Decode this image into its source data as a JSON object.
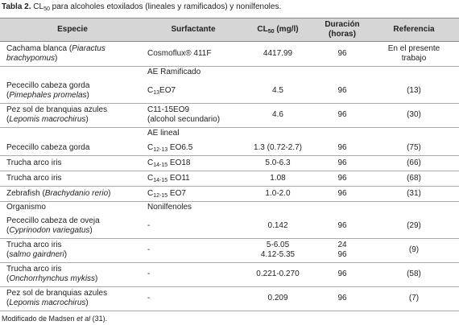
{
  "title": [
    {
      "b": "Tabla 2."
    },
    " CL",
    {
      "sub": "50"
    },
    " para alcoholes etoxilados (lineales y ramificados) y nonilfenoles."
  ],
  "table": {
    "header": [
      [
        [
          "Especie"
        ]
      ],
      [
        [
          "Surfactante"
        ]
      ],
      [
        [
          "CL",
          {
            "sub": "50"
          },
          " (mg/l)"
        ]
      ],
      [
        [
          "Duración"
        ],
        [
          "(horas)"
        ]
      ],
      [
        [
          "Referencia"
        ]
      ]
    ],
    "rows": [
      [
        [
          [
            "Cachama blanca (",
            {
              "i": "Piaractus"
            }
          ],
          [
            {
              "i": "brachypomus"
            },
            ")"
          ]
        ],
        [
          [
            "Cosmoflux® 411F"
          ]
        ],
        [
          [
            "4417.99"
          ]
        ],
        [
          [
            "96"
          ]
        ],
        [
          [
            "En el presente"
          ],
          [
            "trabajo"
          ]
        ]
      ],
      [
        [],
        [
          [
            "AE Ramificado"
          ]
        ],
        [],
        [],
        []
      ],
      [
        [
          [
            "Pececillo cabeza gorda"
          ],
          [
            "(",
            {
              "i": "Pimephales promelas"
            },
            ")"
          ]
        ],
        [
          [
            "C",
            {
              "sub": "13"
            },
            "EO7"
          ]
        ],
        [
          [
            "4.5"
          ]
        ],
        [
          [
            "96"
          ]
        ],
        [
          [
            "(13)"
          ]
        ]
      ],
      [
        [
          [
            "Pez sol de branquias azules"
          ],
          [
            "(",
            {
              "i": "Lepomis macrochirus"
            },
            ")"
          ]
        ],
        [
          [
            "C11-15EO9"
          ],
          [
            "(alcohol secundario)"
          ]
        ],
        [
          [
            "4.6"
          ]
        ],
        [
          [
            "96"
          ]
        ],
        [
          [
            "(30)"
          ]
        ]
      ],
      [
        [],
        [
          [
            "AE lineal"
          ]
        ],
        [],
        [],
        []
      ],
      [
        [
          [
            "Pececillo cabeza gorda"
          ]
        ],
        [
          [
            "C",
            {
              "sub": "12-13"
            },
            " EO6.5"
          ]
        ],
        [
          [
            "1.3 (0.72-2.7)"
          ]
        ],
        [
          [
            "96"
          ]
        ],
        [
          [
            "(75)"
          ]
        ]
      ],
      [
        [
          [
            "Trucha arco iris"
          ]
        ],
        [
          [
            "C",
            {
              "sub": "14-15"
            },
            " EO18"
          ]
        ],
        [
          [
            "5.0-6.3"
          ]
        ],
        [
          [
            "96"
          ]
        ],
        [
          [
            "(66)"
          ]
        ]
      ],
      [
        [
          [
            "Trucha arco iris"
          ]
        ],
        [
          [
            "C",
            {
              "sub": "14-15"
            },
            " EO11"
          ]
        ],
        [
          [
            "1.08"
          ]
        ],
        [
          [
            "96"
          ]
        ],
        [
          [
            "(68)"
          ]
        ]
      ],
      [
        [
          [
            "Zebrafish (",
            {
              "i": "Brachydanio rerio"
            },
            ")"
          ]
        ],
        [
          [
            "C",
            {
              "sub": "12-15"
            },
            " EO7"
          ]
        ],
        [
          [
            "1.0-2.0"
          ]
        ],
        [
          [
            "96"
          ]
        ],
        [
          [
            "(31)"
          ]
        ]
      ],
      [
        [
          [
            "Organismo"
          ]
        ],
        [
          [
            "Nonilfenoles"
          ]
        ],
        [],
        [],
        []
      ],
      [
        [
          [
            "Pececillo cabeza de oveja"
          ],
          [
            "(",
            {
              "i": "Cyprinodon variegatus"
            },
            ")"
          ]
        ],
        [
          [
            "-"
          ]
        ],
        [
          [
            "0.142"
          ]
        ],
        [
          [
            "96"
          ]
        ],
        [
          [
            "(29)"
          ]
        ]
      ],
      [
        [
          [
            "Trucha arco iris"
          ],
          [
            "(",
            {
              "i": "salmo gairdneri"
            },
            ")"
          ]
        ],
        [
          [
            "-"
          ]
        ],
        [
          [
            "5-6.05"
          ],
          [
            "4.12-5.35"
          ]
        ],
        [
          [
            "24"
          ],
          [
            "96"
          ]
        ],
        [
          [
            "(9)"
          ]
        ]
      ],
      [
        [
          [
            "Trucha arco iris"
          ],
          [
            "(",
            {
              "i": "Onchorrhynchus mykiss"
            },
            ")"
          ]
        ],
        [
          [
            "-"
          ]
        ],
        [
          [
            "0.221-0.270"
          ]
        ],
        [
          [
            "96"
          ]
        ],
        [
          [
            "(58)"
          ]
        ]
      ],
      [
        [
          [
            "Pez sol de branquias azules"
          ],
          [
            "(",
            {
              "i": "Lepomis macrochirus"
            },
            ")"
          ]
        ],
        [
          [
            "-"
          ]
        ],
        [
          [
            "0.209"
          ]
        ],
        [
          [
            "96"
          ]
        ],
        [
          [
            "(7)"
          ]
        ]
      ]
    ]
  },
  "footnote": [
    "Modificado de Madsen ",
    {
      "i": "et al"
    },
    " (31)."
  ]
}
